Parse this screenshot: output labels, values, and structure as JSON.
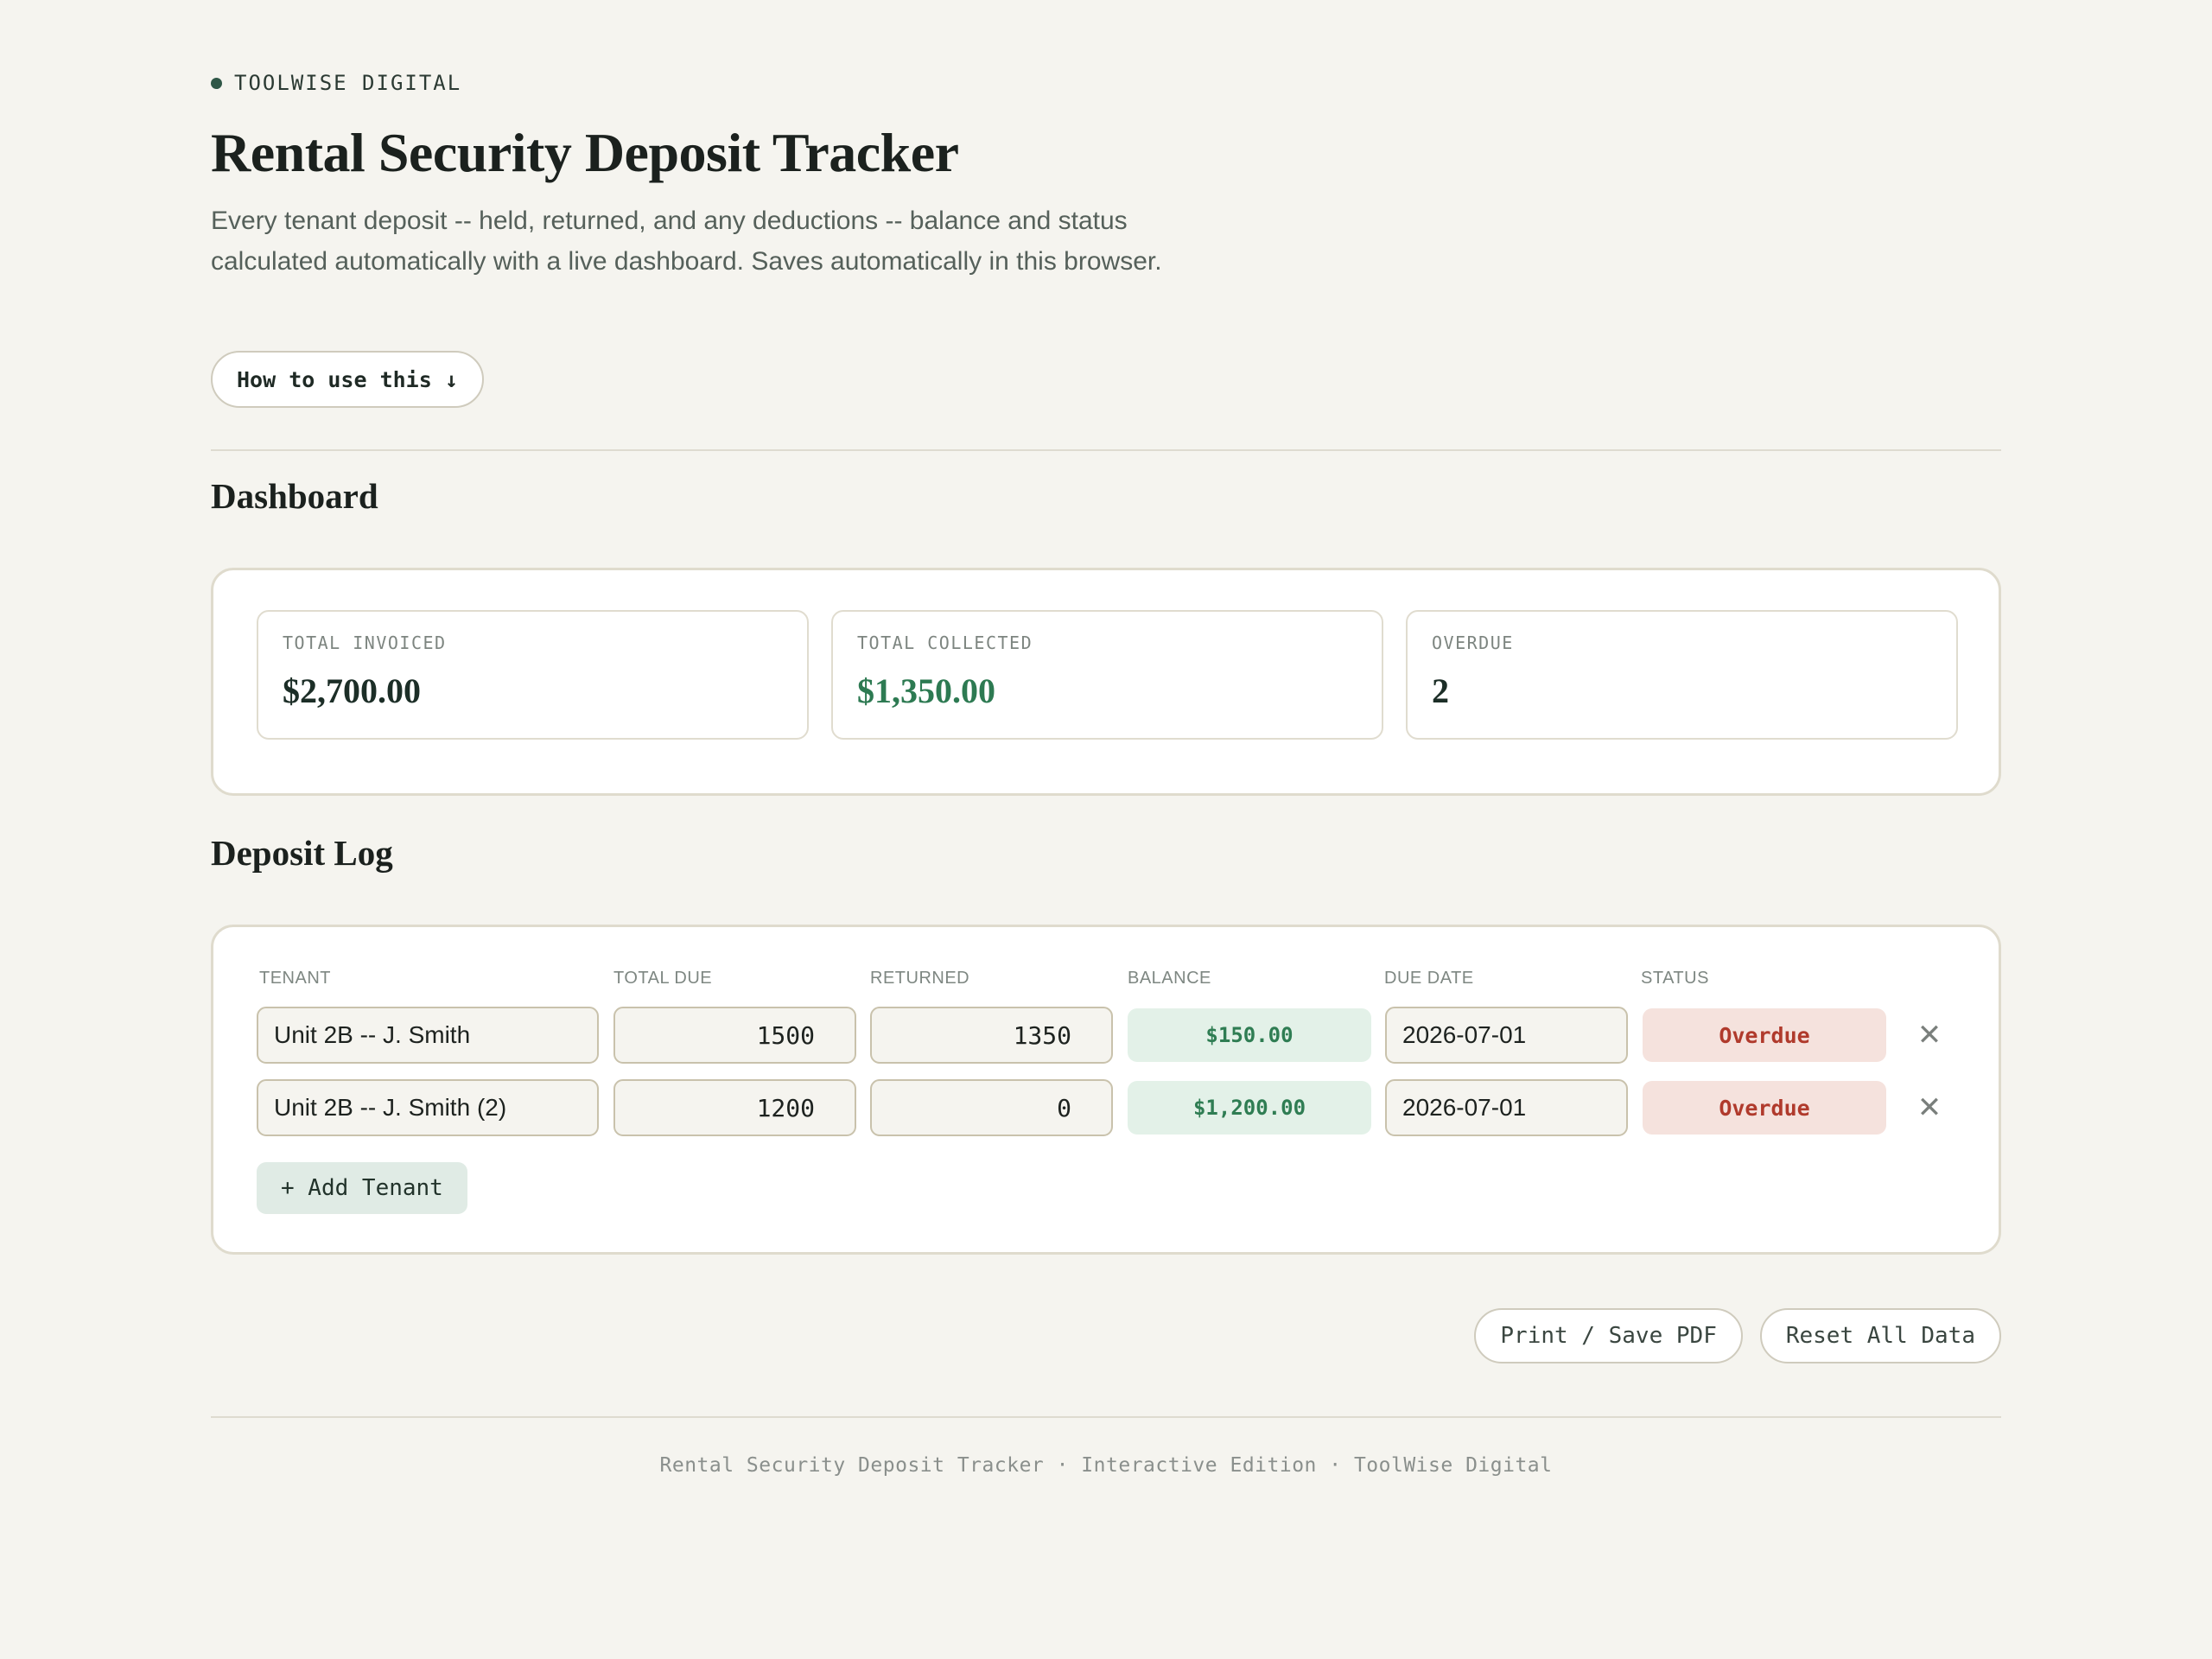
{
  "header": {
    "brand": "TOOLWISE DIGITAL",
    "title": "Rental Security Deposit Tracker",
    "subtitle": "Every tenant deposit -- held, returned, and any deductions -- balance and status calculated automatically with a live dashboard. Saves automatically in this browser.",
    "howto_label": "How to use this ↓"
  },
  "dashboard": {
    "title": "Dashboard",
    "stats": [
      {
        "label": "TOTAL INVOICED",
        "value": "$2,700.00"
      },
      {
        "label": "TOTAL COLLECTED",
        "value": "$1,350.00"
      },
      {
        "label": "OVERDUE",
        "value": "2"
      }
    ]
  },
  "log": {
    "title": "Deposit Log",
    "columns": [
      "TENANT",
      "TOTAL DUE",
      "RETURNED",
      "BALANCE",
      "DUE DATE",
      "STATUS"
    ],
    "rows": [
      {
        "tenant": "Unit 2B -- J. Smith",
        "total_due": "1500",
        "returned": "1350",
        "balance": "$150.00",
        "due_date": "2026-07-01",
        "status": "Overdue"
      },
      {
        "tenant": "Unit 2B -- J. Smith (2)",
        "total_due": "1200",
        "returned": "0",
        "balance": "$1,200.00",
        "due_date": "2026-07-01",
        "status": "Overdue"
      }
    ],
    "delete_glyph": "✕",
    "add_label": "+ Add Tenant"
  },
  "actions": {
    "print_label": "Print / Save PDF",
    "reset_label": "Reset All Data"
  },
  "footer": {
    "text": "Rental Security Deposit Tracker · Interactive Edition · ToolWise Digital"
  },
  "colors": {
    "background": "#f5f4ef",
    "accent_green": "#2d7a52",
    "overdue_red": "#b03a2c"
  }
}
